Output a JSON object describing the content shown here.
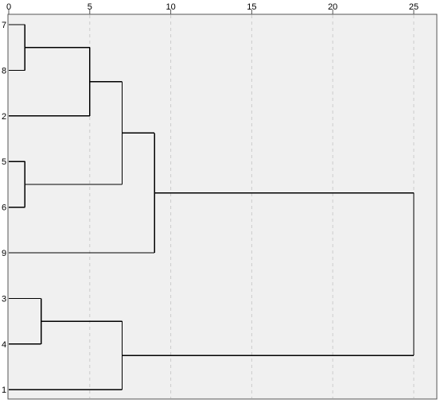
{
  "chart_data": {
    "type": "dendrogram",
    "orientation": "horizontal",
    "x_ticks": [
      "0",
      "5",
      "10",
      "15",
      "20",
      "25"
    ],
    "x_range": [
      0,
      25
    ],
    "grid": "vertical dashed",
    "leaves": [
      "7",
      "8",
      "2",
      "5",
      "6",
      "9",
      "3",
      "4",
      "1"
    ],
    "merges": [
      {
        "id": "A",
        "children": [
          "7",
          "8"
        ],
        "height": 1
      },
      {
        "id": "B",
        "children": [
          "A",
          "2"
        ],
        "height": 5
      },
      {
        "id": "C",
        "children": [
          "5",
          "6"
        ],
        "height": 1
      },
      {
        "id": "D",
        "children": [
          "B",
          "C"
        ],
        "height": 7
      },
      {
        "id": "E",
        "children": [
          "D",
          "9"
        ],
        "height": 9
      },
      {
        "id": "F",
        "children": [
          "3",
          "4"
        ],
        "height": 2
      },
      {
        "id": "G",
        "children": [
          "F",
          "1"
        ],
        "height": 7
      },
      {
        "id": "H",
        "children": [
          "E",
          "G"
        ],
        "height": 25
      }
    ],
    "colors": {
      "plot_background": "#f0f0f0",
      "line": "#000000",
      "grid": "#cccccc",
      "frame": "#555555"
    }
  }
}
